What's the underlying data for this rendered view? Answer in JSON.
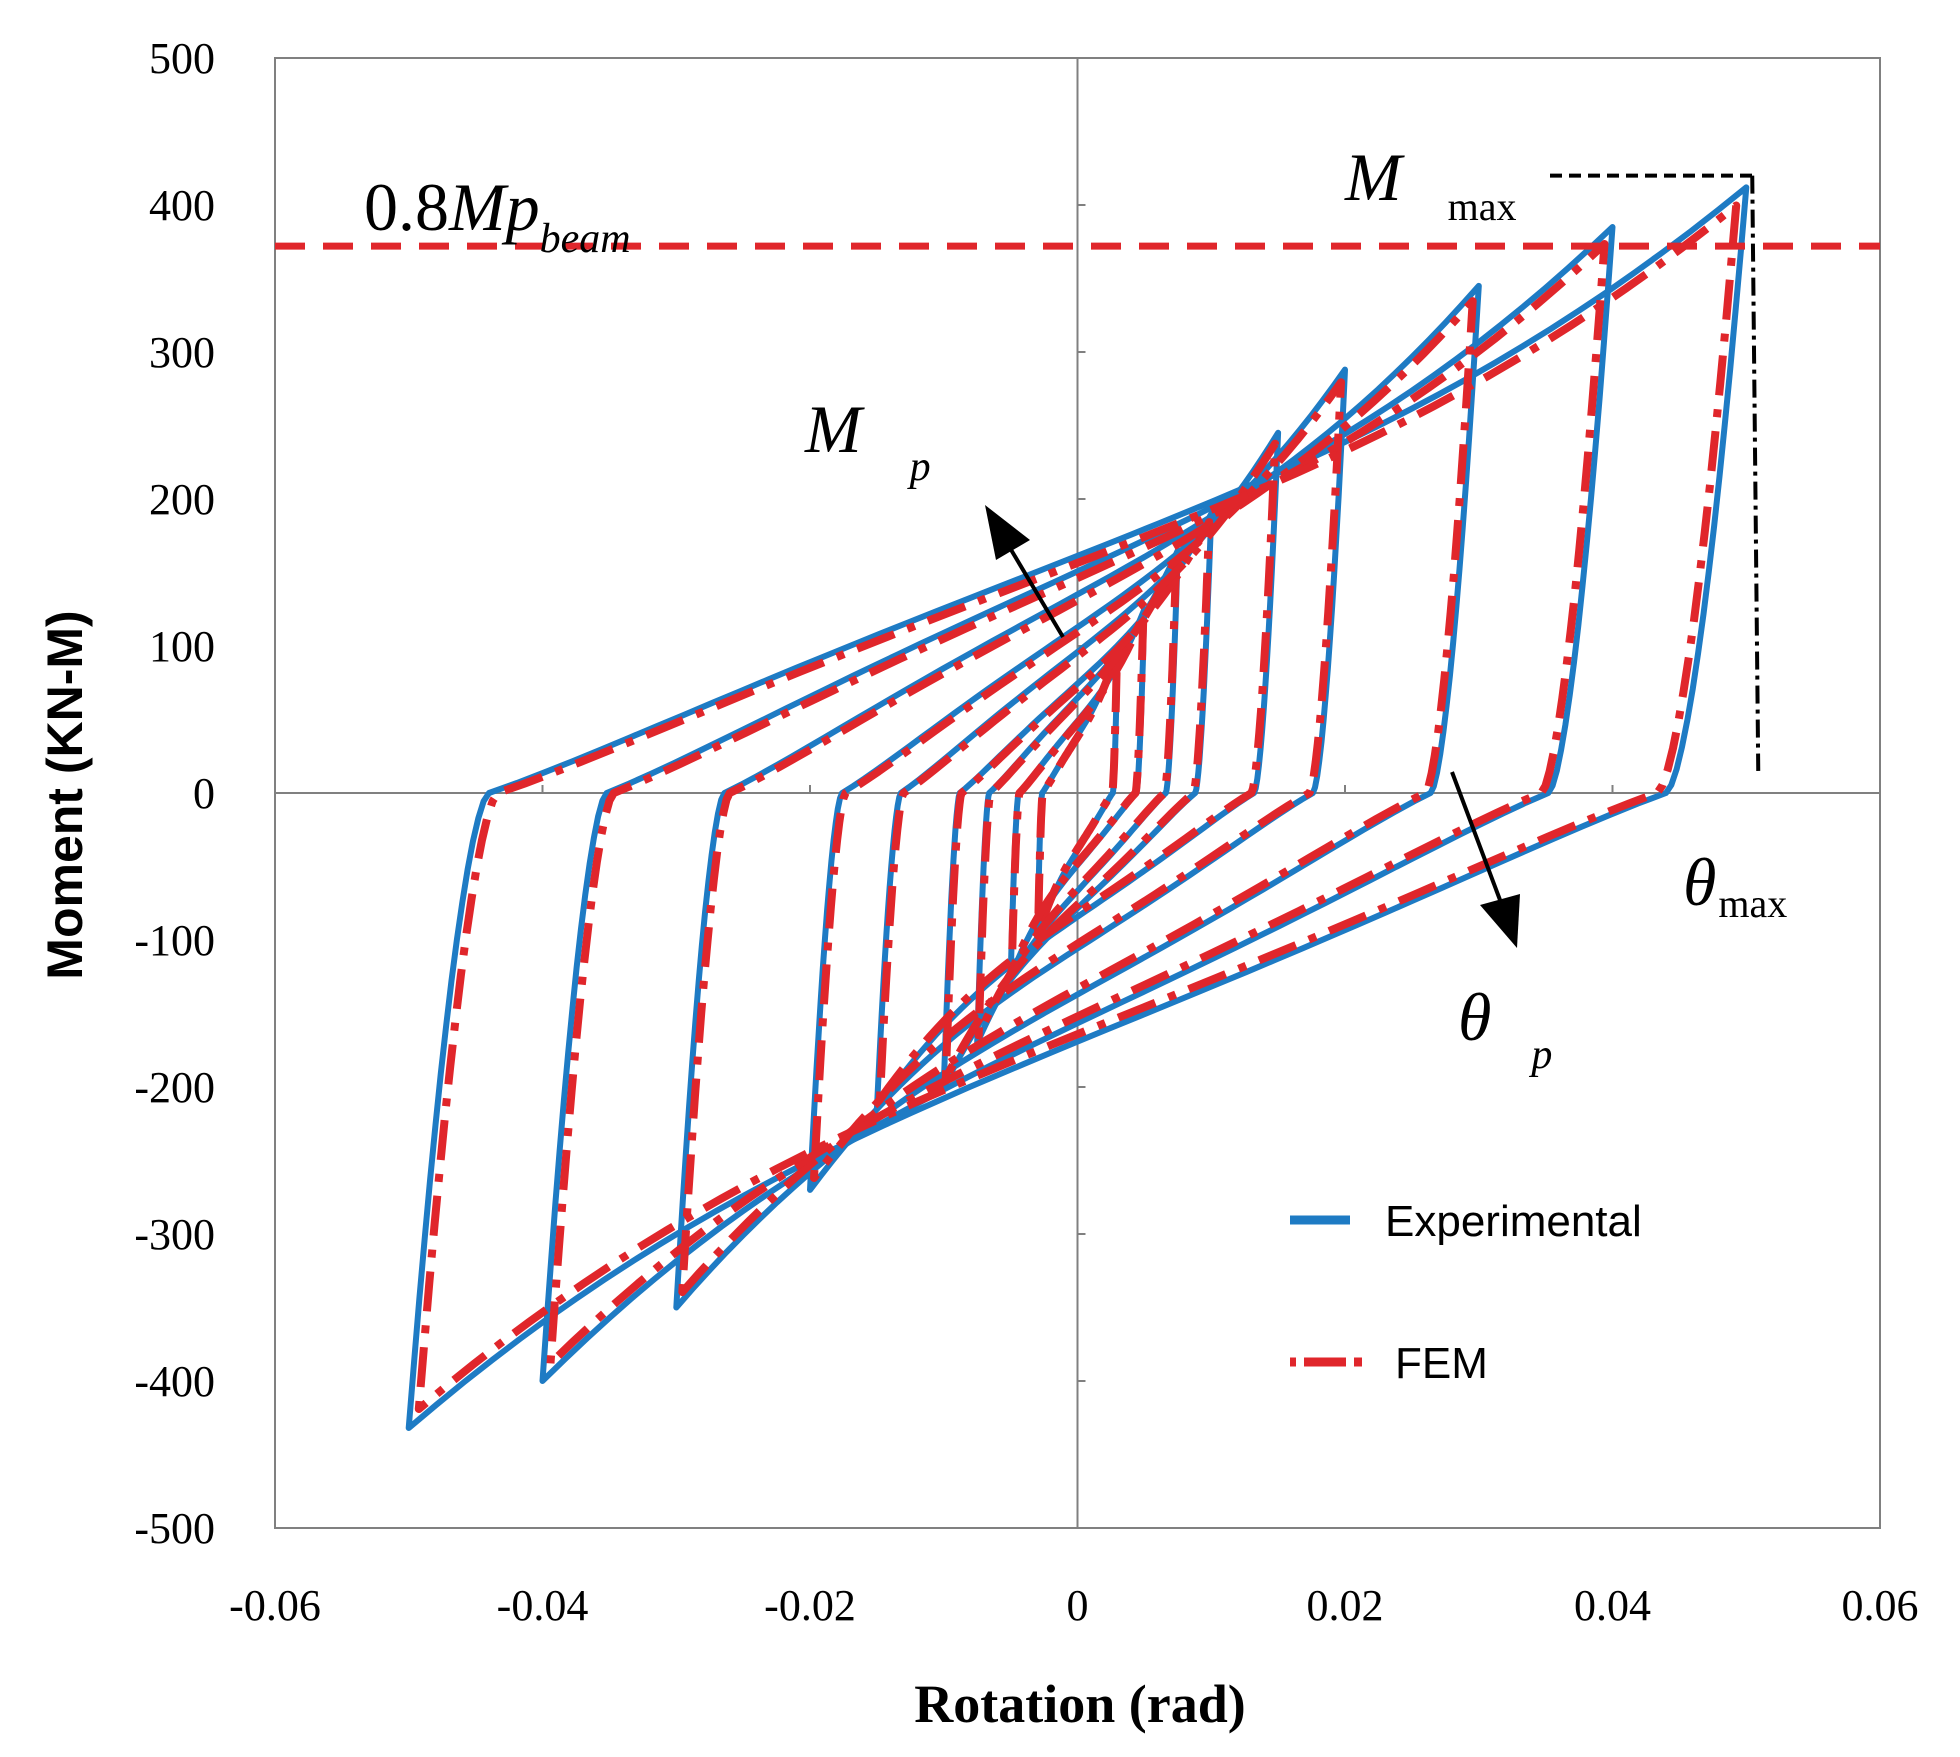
{
  "chart_data": {
    "type": "line",
    "title": "",
    "xlabel": "Rotation (rad)",
    "ylabel": "Moment (KN-M)",
    "xlim": [
      -0.06,
      0.06
    ],
    "ylim": [
      -500,
      500
    ],
    "x_ticks": [
      "-0.06",
      "-0.04",
      "-0.02",
      "0",
      "0.02",
      "0.04",
      "0.06"
    ],
    "y_ticks": [
      "500",
      "400",
      "300",
      "200",
      "100",
      "0",
      "-100",
      "-200",
      "-300",
      "-400",
      "-500"
    ],
    "x_tick_values": [
      -0.06,
      -0.04,
      -0.02,
      0,
      0.02,
      0.04,
      0.06
    ],
    "y_tick_values": [
      500,
      400,
      300,
      200,
      100,
      0,
      -100,
      -200,
      -300,
      -400,
      -500
    ],
    "legend": [
      "Experimental",
      "FEM"
    ],
    "colors": {
      "experimental": "#1e7bc4",
      "fem": "#e0262b",
      "guide": "#000000"
    },
    "reference_line": {
      "label_num": "0.8",
      "label_main": "Mp",
      "label_sub": "beam",
      "y": 372
    },
    "annotations": {
      "mmax": {
        "main": "M",
        "sub": "max",
        "value_x": 0.05,
        "value_y": 420
      },
      "theta_max": {
        "main": "θ",
        "sub": "max",
        "x": 0.05
      },
      "mp": {
        "main": "M",
        "sub": "p"
      },
      "theta_p": {
        "main": "θ",
        "sub": "p"
      }
    },
    "cycles": [
      {
        "amp": 0.003,
        "mpos": 100,
        "mneg": -100,
        "rpos": 12,
        "rneg": 12
      },
      {
        "amp": 0.005,
        "mpos": 125,
        "mneg": -125,
        "rpos": 12,
        "rneg": 12
      },
      {
        "amp": 0.0075,
        "mpos": 165,
        "mneg": -170,
        "rpos": 12,
        "rneg": 12
      },
      {
        "amp": 0.01,
        "mpos": 190,
        "mneg": -200,
        "rpos": 12,
        "rneg": 12
      },
      {
        "amp": 0.015,
        "mpos": 245,
        "mneg": -215,
        "rpos": 15,
        "rneg": 15
      },
      {
        "amp": 0.02,
        "mpos": 288,
        "mneg": -270,
        "rpos": 22,
        "rneg": 22
      },
      {
        "amp": 0.03,
        "mpos": 345,
        "mneg": -350,
        "rpos": 35,
        "rneg": 35
      },
      {
        "amp": 0.04,
        "mpos": 385,
        "mneg": -400,
        "rpos": 45,
        "rneg": 50
      },
      {
        "amp": 0.05,
        "mpos": 412,
        "mneg": -432,
        "rpos": 60,
        "rneg": 60
      }
    ]
  }
}
